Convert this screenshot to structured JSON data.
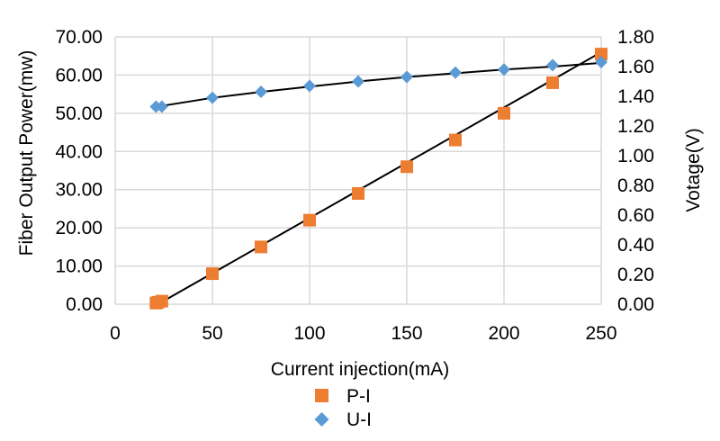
{
  "chart_data": {
    "type": "scatter",
    "xlabel": "Current injection(mA)",
    "ylabel": "Fiber Output Power(mw)",
    "y2label": "Votage(V)",
    "xlim": [
      0,
      250
    ],
    "ylim": [
      0,
      70
    ],
    "y2lim": [
      0,
      1.8
    ],
    "x_ticks": [
      "0",
      "50",
      "100",
      "150",
      "200",
      "250"
    ],
    "y_ticks": [
      "0.00",
      "10.00",
      "20.00",
      "30.00",
      "40.00",
      "50.00",
      "60.00",
      "70.00"
    ],
    "y2_ticks": [
      "0.00",
      "0.20",
      "0.40",
      "0.60",
      "0.80",
      "1.00",
      "1.20",
      "1.40",
      "1.60",
      "1.80"
    ],
    "grid": true,
    "legend_position": "bottom",
    "series": [
      {
        "name": "P-I",
        "axis": "left",
        "marker": "square",
        "color": "#ed7d31",
        "x": [
          21,
          22,
          24,
          50,
          75,
          100,
          125,
          150,
          175,
          200,
          225,
          250
        ],
        "y": [
          0.3,
          0.5,
          0.8,
          8.0,
          15.0,
          22.0,
          29.0,
          36.0,
          43.0,
          50.0,
          58.0,
          65.5
        ],
        "trendline": [
          [
            22,
            0.0
          ],
          [
            250,
            66.0
          ]
        ]
      },
      {
        "name": "U-I",
        "axis": "right",
        "marker": "diamond",
        "color": "#5b9bd5",
        "x": [
          21,
          24,
          50,
          75,
          100,
          125,
          150,
          175,
          200,
          225,
          250
        ],
        "y": [
          1.33,
          1.33,
          1.39,
          1.43,
          1.47,
          1.5,
          1.53,
          1.56,
          1.58,
          1.61,
          1.63
        ],
        "trendline": [
          [
            21,
            1.32
          ],
          [
            24,
            1.335
          ],
          [
            50,
            1.39
          ],
          [
            75,
            1.43
          ],
          [
            100,
            1.465
          ],
          [
            125,
            1.5
          ],
          [
            150,
            1.53
          ],
          [
            175,
            1.555
          ],
          [
            200,
            1.58
          ],
          [
            225,
            1.6
          ],
          [
            250,
            1.625
          ]
        ]
      }
    ]
  }
}
